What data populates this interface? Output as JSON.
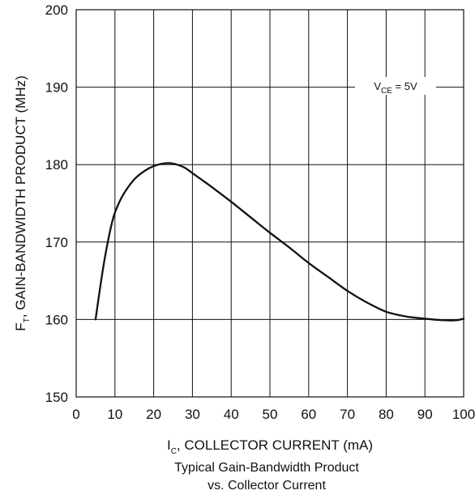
{
  "chart_data": {
    "type": "line",
    "title": "",
    "caption": [
      "Typical Gain-Bandwidth Product",
      "vs. Collector Current"
    ],
    "xlabel": {
      "main": "I",
      "sub": "C",
      "rest": ", COLLECTOR CURRENT (mA)"
    },
    "ylabel": {
      "main": "F",
      "sub": "T",
      "rest": ", GAIN-BANDWIDTH PRODUCT (MHz)"
    },
    "xlim": [
      0,
      100
    ],
    "ylim": [
      150,
      200
    ],
    "xticks": [
      0,
      10,
      20,
      30,
      40,
      50,
      60,
      70,
      80,
      90,
      100
    ],
    "yticks": [
      150,
      160,
      170,
      180,
      190,
      200
    ],
    "grid": true,
    "annotation": {
      "main": "V",
      "sub": "CE",
      "rest": " = 5V",
      "x": 95,
      "y": 189
    },
    "series": [
      {
        "color": "#111111",
        "x": [
          5,
          6,
          7,
          8,
          9,
          10,
          12,
          15,
          18,
          20,
          22,
          24,
          26,
          28,
          30,
          35,
          40,
          45,
          50,
          55,
          60,
          65,
          70,
          75,
          80,
          85,
          90,
          95,
          98,
          100
        ],
        "y": [
          160,
          163.5,
          166.8,
          169.6,
          172,
          173.8,
          176,
          178.1,
          179.3,
          179.8,
          180.1,
          180.2,
          180,
          179.6,
          178.9,
          177.1,
          175.2,
          173.2,
          171.2,
          169.3,
          167.3,
          165.5,
          163.7,
          162.2,
          161.0,
          160.4,
          160.1,
          159.9,
          159.9,
          160.1
        ]
      }
    ]
  }
}
